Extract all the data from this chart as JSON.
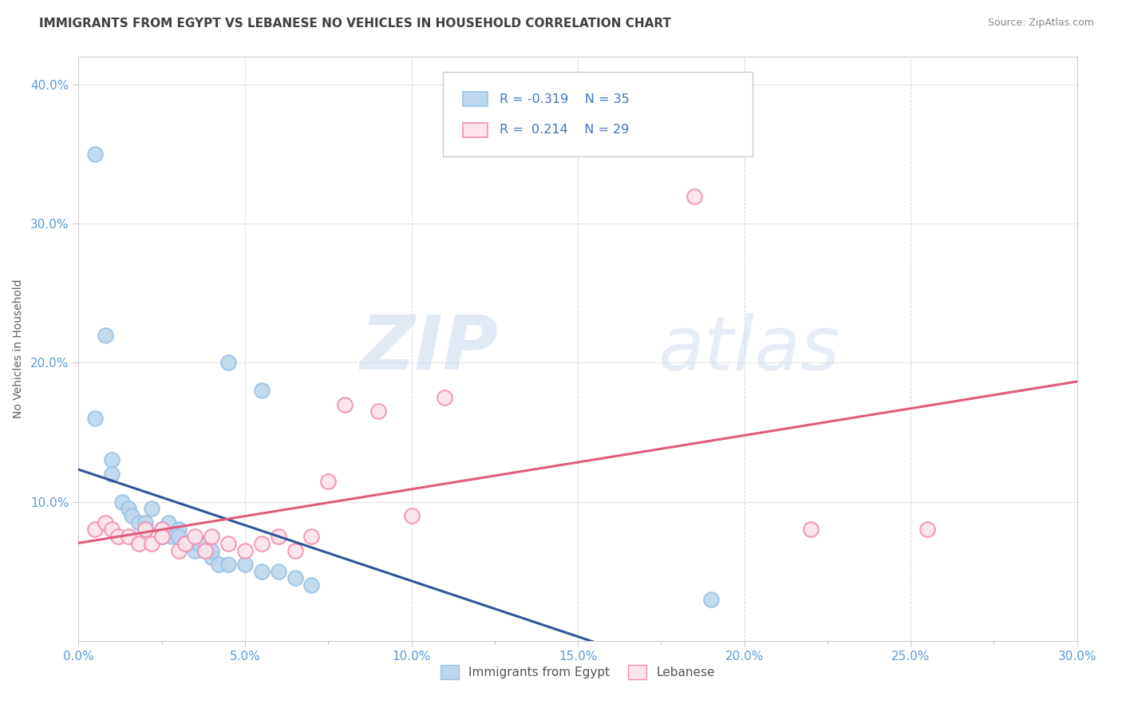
{
  "title": "IMMIGRANTS FROM EGYPT VS LEBANESE NO VEHICLES IN HOUSEHOLD CORRELATION CHART",
  "source": "Source: ZipAtlas.com",
  "ylabel": "No Vehicles in Household",
  "watermark_zip": "ZIP",
  "watermark_atlas": "atlas",
  "xlim": [
    0.0,
    0.3
  ],
  "ylim": [
    0.0,
    0.42
  ],
  "xtick_labels": [
    "0.0%",
    "",
    "5.0%",
    "",
    "10.0%",
    "",
    "15.0%",
    "",
    "20.0%",
    "",
    "25.0%",
    "",
    "30.0%"
  ],
  "xtick_vals": [
    0.0,
    0.025,
    0.05,
    0.075,
    0.1,
    0.125,
    0.15,
    0.175,
    0.2,
    0.225,
    0.25,
    0.275,
    0.3
  ],
  "ytick_labels": [
    "10.0%",
    "20.0%",
    "30.0%",
    "40.0%"
  ],
  "ytick_vals": [
    0.1,
    0.2,
    0.3,
    0.4
  ],
  "egypt_color": "#bdd7ee",
  "egypt_edge_color": "#9dc3e6",
  "lebanese_color": "#fce4ec",
  "lebanese_edge_color": "#f48fb1",
  "trend_egypt_color": "#2f5597",
  "trend_lebanese_color": "#e05b7a",
  "R_egypt": -0.319,
  "N_egypt": 35,
  "R_lebanese": 0.214,
  "N_lebanese": 29,
  "egypt_x": [
    0.005,
    0.01,
    0.01,
    0.013,
    0.015,
    0.016,
    0.018,
    0.02,
    0.02,
    0.022,
    0.025,
    0.025,
    0.027,
    0.028,
    0.03,
    0.03,
    0.032,
    0.033,
    0.035,
    0.036,
    0.038,
    0.04,
    0.04,
    0.042,
    0.045,
    0.05,
    0.055,
    0.06,
    0.065,
    0.07,
    0.005,
    0.008,
    0.045,
    0.19,
    0.055
  ],
  "egypt_y": [
    0.16,
    0.13,
    0.12,
    0.1,
    0.095,
    0.09,
    0.085,
    0.085,
    0.08,
    0.095,
    0.075,
    0.08,
    0.085,
    0.075,
    0.08,
    0.075,
    0.07,
    0.07,
    0.065,
    0.07,
    0.065,
    0.06,
    0.065,
    0.055,
    0.055,
    0.055,
    0.05,
    0.05,
    0.045,
    0.04,
    0.35,
    0.22,
    0.2,
    0.03,
    0.18
  ],
  "lebanese_x": [
    0.005,
    0.008,
    0.01,
    0.012,
    0.015,
    0.018,
    0.02,
    0.022,
    0.025,
    0.025,
    0.03,
    0.032,
    0.035,
    0.038,
    0.04,
    0.045,
    0.05,
    0.055,
    0.06,
    0.065,
    0.07,
    0.08,
    0.09,
    0.1,
    0.185,
    0.22,
    0.255,
    0.11,
    0.075
  ],
  "lebanese_y": [
    0.08,
    0.085,
    0.08,
    0.075,
    0.075,
    0.07,
    0.08,
    0.07,
    0.08,
    0.075,
    0.065,
    0.07,
    0.075,
    0.065,
    0.075,
    0.07,
    0.065,
    0.07,
    0.075,
    0.065,
    0.075,
    0.17,
    0.165,
    0.09,
    0.32,
    0.08,
    0.08,
    0.175,
    0.115
  ],
  "background_color": "#ffffff",
  "grid_color": "#cccccc",
  "tick_color": "#5b9bd5",
  "title_color": "#404040",
  "source_color": "#888888",
  "ylabel_color": "#606060"
}
